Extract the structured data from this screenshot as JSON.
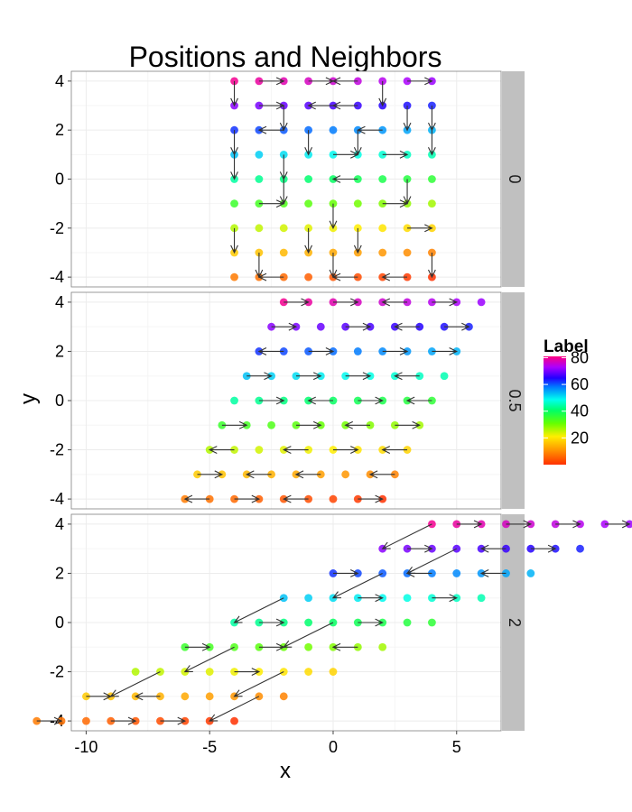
{
  "chart_data": {
    "type": "scatter",
    "title": "Positions and Neighbors",
    "xlabel": "x",
    "ylabel": "y",
    "xlim": [
      -10.6,
      6.8
    ],
    "ylim": [
      -4.4,
      4.4
    ],
    "x_ticks": [
      -10,
      -5,
      0,
      5
    ],
    "y_ticks": [
      4,
      2,
      0,
      -2,
      -4
    ],
    "x_tick_labels": [
      "-10",
      "-5",
      "0",
      "5"
    ],
    "y_tick_labels": [
      "4",
      "2",
      "0",
      "-2",
      "-4"
    ],
    "grid": true,
    "facet_variable_values": [
      "0",
      "0.5",
      "2"
    ],
    "legend": {
      "title": "Label",
      "position": "right",
      "ticks": [
        20,
        40,
        60,
        80
      ],
      "tick_labels": [
        "20",
        "40",
        "60",
        "80"
      ],
      "range": [
        0,
        81
      ],
      "colormap": "rainbow (red at low, magenta at high)"
    },
    "panels": [
      {
        "strip": "0",
        "shear": 0,
        "points": "9x9 lattice, x in {-4..4}, y in {-4..4}, label 0 at bottom-right, 80 at top-left",
        "arrows_from_to": [
          [
            [
              -4,
              4
            ],
            [
              -4,
              3
            ]
          ],
          [
            [
              -3,
              4
            ],
            [
              -2,
              4
            ]
          ],
          [
            [
              -1,
              4
            ],
            [
              0,
              4
            ]
          ],
          [
            [
              1,
              4
            ],
            [
              0,
              4
            ]
          ],
          [
            [
              2,
              4
            ],
            [
              2,
              3
            ]
          ],
          [
            [
              3,
              4
            ],
            [
              4,
              4
            ]
          ],
          [
            [
              -3,
              3
            ],
            [
              -2,
              3
            ]
          ],
          [
            [
              -2,
              3
            ],
            [
              -2,
              2
            ]
          ],
          [
            [
              0,
              3
            ],
            [
              -1,
              3
            ]
          ],
          [
            [
              1,
              3
            ],
            [
              0,
              3
            ]
          ],
          [
            [
              3,
              3
            ],
            [
              3,
              2
            ]
          ],
          [
            [
              4,
              3
            ],
            [
              4,
              2
            ]
          ],
          [
            [
              -4,
              2
            ],
            [
              -4,
              1
            ]
          ],
          [
            [
              -2,
              2
            ],
            [
              -3,
              2
            ]
          ],
          [
            [
              -1,
              2
            ],
            [
              -1,
              1
            ]
          ],
          [
            [
              1,
              2
            ],
            [
              1,
              1
            ]
          ],
          [
            [
              2,
              2
            ],
            [
              1,
              2
            ]
          ],
          [
            [
              4,
              2
            ],
            [
              4,
              1
            ]
          ],
          [
            [
              -4,
              1
            ],
            [
              -4,
              0
            ]
          ],
          [
            [
              -2,
              1
            ],
            [
              -2,
              0
            ]
          ],
          [
            [
              0,
              1
            ],
            [
              1,
              1
            ]
          ],
          [
            [
              2,
              1
            ],
            [
              3,
              1
            ]
          ],
          [
            [
              -2,
              0
            ],
            [
              -2,
              -1
            ]
          ],
          [
            [
              1,
              0
            ],
            [
              0,
              0
            ]
          ],
          [
            [
              3,
              0
            ],
            [
              3,
              -1
            ]
          ],
          [
            [
              -3,
              -1
            ],
            [
              -2,
              -1
            ]
          ],
          [
            [
              0,
              -1
            ],
            [
              0,
              -2
            ]
          ],
          [
            [
              2,
              -1
            ],
            [
              3,
              -1
            ]
          ],
          [
            [
              -4,
              -2
            ],
            [
              -4,
              -3
            ]
          ],
          [
            [
              -1,
              -2
            ],
            [
              -1,
              -3
            ]
          ],
          [
            [
              1,
              -2
            ],
            [
              1,
              -3
            ]
          ],
          [
            [
              3,
              -2
            ],
            [
              4,
              -2
            ]
          ],
          [
            [
              -3,
              -3
            ],
            [
              -3,
              -4
            ]
          ],
          [
            [
              0,
              -3
            ],
            [
              0,
              -4
            ]
          ],
          [
            [
              4,
              -3
            ],
            [
              4,
              -4
            ]
          ],
          [
            [
              -2,
              -4
            ],
            [
              -3,
              -4
            ]
          ],
          [
            [
              1,
              -4
            ],
            [
              0,
              -4
            ]
          ],
          [
            [
              3,
              -4
            ],
            [
              2,
              -4
            ]
          ]
        ]
      },
      {
        "strip": "0.5",
        "shear": 0.5,
        "points": "9x9 lattice sheared by 0.5*y, x in {-4..4}, y in {-4..4}",
        "arrows_from_to": [
          [
            [
              -4,
              4
            ],
            [
              -3,
              4
            ]
          ],
          [
            [
              -2,
              4
            ],
            [
              -1,
              4
            ]
          ],
          [
            [
              1,
              4
            ],
            [
              0,
              4
            ]
          ],
          [
            [
              2,
              4
            ],
            [
              3,
              4
            ]
          ],
          [
            [
              -4,
              3
            ],
            [
              -3,
              3
            ]
          ],
          [
            [
              -1,
              3
            ],
            [
              0,
              3
            ]
          ],
          [
            [
              2,
              3
            ],
            [
              1,
              3
            ]
          ],
          [
            [
              3,
              3
            ],
            [
              4,
              3
            ]
          ],
          [
            [
              -3,
              2
            ],
            [
              -4,
              2
            ]
          ],
          [
            [
              -2,
              2
            ],
            [
              -1,
              2
            ]
          ],
          [
            [
              1,
              2
            ],
            [
              2,
              2
            ]
          ],
          [
            [
              3,
              2
            ],
            [
              4,
              2
            ]
          ],
          [
            [
              -4,
              1
            ],
            [
              -3,
              1
            ]
          ],
          [
            [
              -2,
              1
            ],
            [
              -1,
              1
            ]
          ],
          [
            [
              0,
              1
            ],
            [
              1,
              1
            ]
          ],
          [
            [
              3,
              1
            ],
            [
              2,
              1
            ]
          ],
          [
            [
              -3,
              0
            ],
            [
              -2,
              0
            ]
          ],
          [
            [
              0,
              0
            ],
            [
              -1,
              0
            ]
          ],
          [
            [
              1,
              0
            ],
            [
              2,
              0
            ]
          ],
          [
            [
              4,
              0
            ],
            [
              3,
              0
            ]
          ],
          [
            [
              -4,
              -1
            ],
            [
              -3,
              -1
            ]
          ],
          [
            [
              -1,
              -1
            ],
            [
              0,
              -1
            ]
          ],
          [
            [
              2,
              -1
            ],
            [
              1,
              -1
            ]
          ],
          [
            [
              3,
              -1
            ],
            [
              4,
              -1
            ]
          ],
          [
            [
              -3,
              -2
            ],
            [
              -4,
              -2
            ]
          ],
          [
            [
              0,
              -2
            ],
            [
              -1,
              -2
            ]
          ],
          [
            [
              1,
              -2
            ],
            [
              2,
              -2
            ]
          ],
          [
            [
              4,
              -2
            ],
            [
              3,
              -2
            ]
          ],
          [
            [
              -4,
              -3
            ],
            [
              -3,
              -3
            ]
          ],
          [
            [
              -1,
              -3
            ],
            [
              -2,
              -3
            ]
          ],
          [
            [
              1,
              -3
            ],
            [
              0,
              -3
            ]
          ],
          [
            [
              4,
              -3
            ],
            [
              3,
              -3
            ]
          ],
          [
            [
              -3,
              -4
            ],
            [
              -4,
              -4
            ]
          ],
          [
            [
              -2,
              -4
            ],
            [
              -1,
              -4
            ]
          ],
          [
            [
              1,
              -4
            ],
            [
              0,
              -4
            ]
          ],
          [
            [
              3,
              -4
            ],
            [
              4,
              -4
            ]
          ]
        ]
      },
      {
        "strip": "2",
        "shear": 2,
        "points": "9x9 lattice sheared by 2*y, x in {-4..4}, y in {-4..4}",
        "arrows_from_to": [
          [
            [
              -4,
              4
            ],
            [
              -4,
              3
            ]
          ],
          [
            [
              -3,
              4
            ],
            [
              -2,
              4
            ]
          ],
          [
            [
              -1,
              4
            ],
            [
              0,
              4
            ]
          ],
          [
            [
              1,
              4
            ],
            [
              2,
              4
            ]
          ],
          [
            [
              3,
              4
            ],
            [
              4,
              4
            ]
          ],
          [
            [
              -3,
              3
            ],
            [
              -2,
              3
            ]
          ],
          [
            [
              -1,
              3
            ],
            [
              -1,
              2
            ]
          ],
          [
            [
              1,
              3
            ],
            [
              0,
              3
            ]
          ],
          [
            [
              2,
              3
            ],
            [
              3,
              3
            ]
          ],
          [
            [
              -4,
              2
            ],
            [
              -3,
              2
            ]
          ],
          [
            [
              -2,
              2
            ],
            [
              -2,
              1
            ]
          ],
          [
            [
              0,
              2
            ],
            [
              -1,
              2
            ]
          ],
          [
            [
              3,
              2
            ],
            [
              2,
              2
            ]
          ],
          [
            [
              -4,
              1
            ],
            [
              -4,
              0
            ]
          ],
          [
            [
              -1,
              1
            ],
            [
              0,
              1
            ]
          ],
          [
            [
              2,
              1
            ],
            [
              3,
              1
            ]
          ],
          [
            [
              -3,
              0
            ],
            [
              -2,
              0
            ]
          ],
          [
            [
              0,
              0
            ],
            [
              0,
              -1
            ]
          ],
          [
            [
              1,
              0
            ],
            [
              2,
              0
            ]
          ],
          [
            [
              -4,
              -1
            ],
            [
              -3,
              -1
            ]
          ],
          [
            [
              -2,
              -1
            ],
            [
              -2,
              -2
            ]
          ],
          [
            [
              -1,
              -1
            ],
            [
              0,
              -1
            ]
          ],
          [
            [
              3,
              -1
            ],
            [
              2,
              -1
            ]
          ],
          [
            [
              -3,
              -2
            ],
            [
              -3,
              -3
            ]
          ],
          [
            [
              0,
              -2
            ],
            [
              1,
              -2
            ]
          ],
          [
            [
              2,
              -2
            ],
            [
              2,
              -3
            ]
          ],
          [
            [
              -4,
              -3
            ],
            [
              -3,
              -3
            ]
          ],
          [
            [
              -1,
              -3
            ],
            [
              -2,
              -3
            ]
          ],
          [
            [
              3,
              -3
            ],
            [
              3,
              -4
            ]
          ],
          [
            [
              -4,
              -4
            ],
            [
              -3,
              -4
            ]
          ],
          [
            [
              -1,
              -4
            ],
            [
              0,
              -4
            ]
          ],
          [
            [
              1,
              -4
            ],
            [
              2,
              -4
            ]
          ]
        ]
      }
    ]
  },
  "colors": {
    "panel_background": "#ffffff",
    "grid": "#ececec",
    "strip_background": "#c0c0c0",
    "arrow": "#333333",
    "panel_border": "#7f7f7f"
  }
}
